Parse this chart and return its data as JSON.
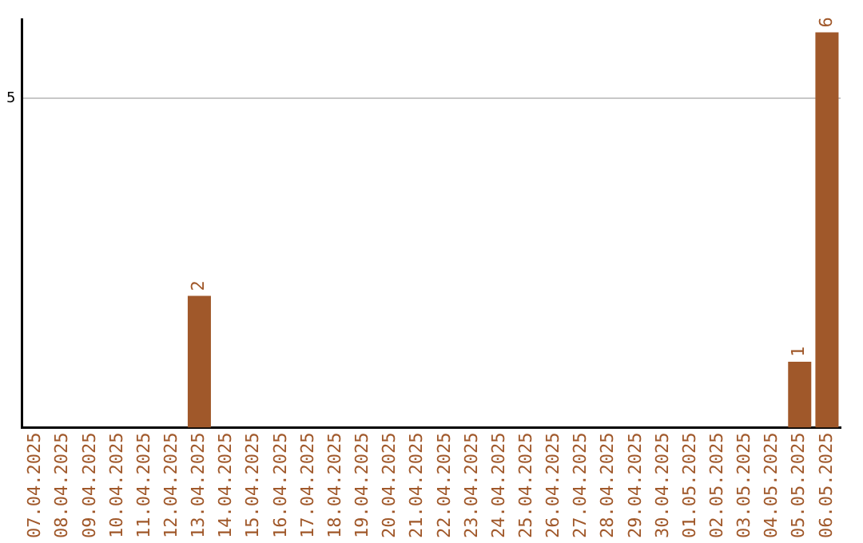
{
  "chart_data": {
    "type": "bar",
    "categories": [
      "07.04.2025",
      "08.04.2025",
      "09.04.2025",
      "10.04.2025",
      "11.04.2025",
      "12.04.2025",
      "13.04.2025",
      "14.04.2025",
      "15.04.2025",
      "16.04.2025",
      "17.04.2025",
      "18.04.2025",
      "19.04.2025",
      "20.04.2025",
      "21.04.2025",
      "22.04.2025",
      "23.04.2025",
      "24.04.2025",
      "25.04.2025",
      "26.04.2025",
      "27.04.2025",
      "28.04.2025",
      "29.04.2025",
      "30.04.2025",
      "01.05.2025",
      "02.05.2025",
      "03.05.2025",
      "04.05.2025",
      "05.05.2025",
      "06.05.2025"
    ],
    "values": [
      0,
      0,
      0,
      0,
      0,
      0,
      2,
      0,
      0,
      0,
      0,
      0,
      0,
      0,
      0,
      0,
      0,
      0,
      0,
      0,
      0,
      0,
      0,
      0,
      0,
      0,
      0,
      0,
      1,
      6
    ],
    "value_labels": [
      null,
      null,
      null,
      null,
      null,
      null,
      "2",
      null,
      null,
      null,
      null,
      null,
      null,
      null,
      null,
      null,
      null,
      null,
      null,
      null,
      null,
      null,
      null,
      null,
      null,
      null,
      null,
      null,
      "1",
      "6"
    ],
    "color": "#a0582a",
    "ylim": [
      0,
      6.2
    ],
    "yticks": [
      5
    ],
    "grid": "y",
    "legend": false
  }
}
